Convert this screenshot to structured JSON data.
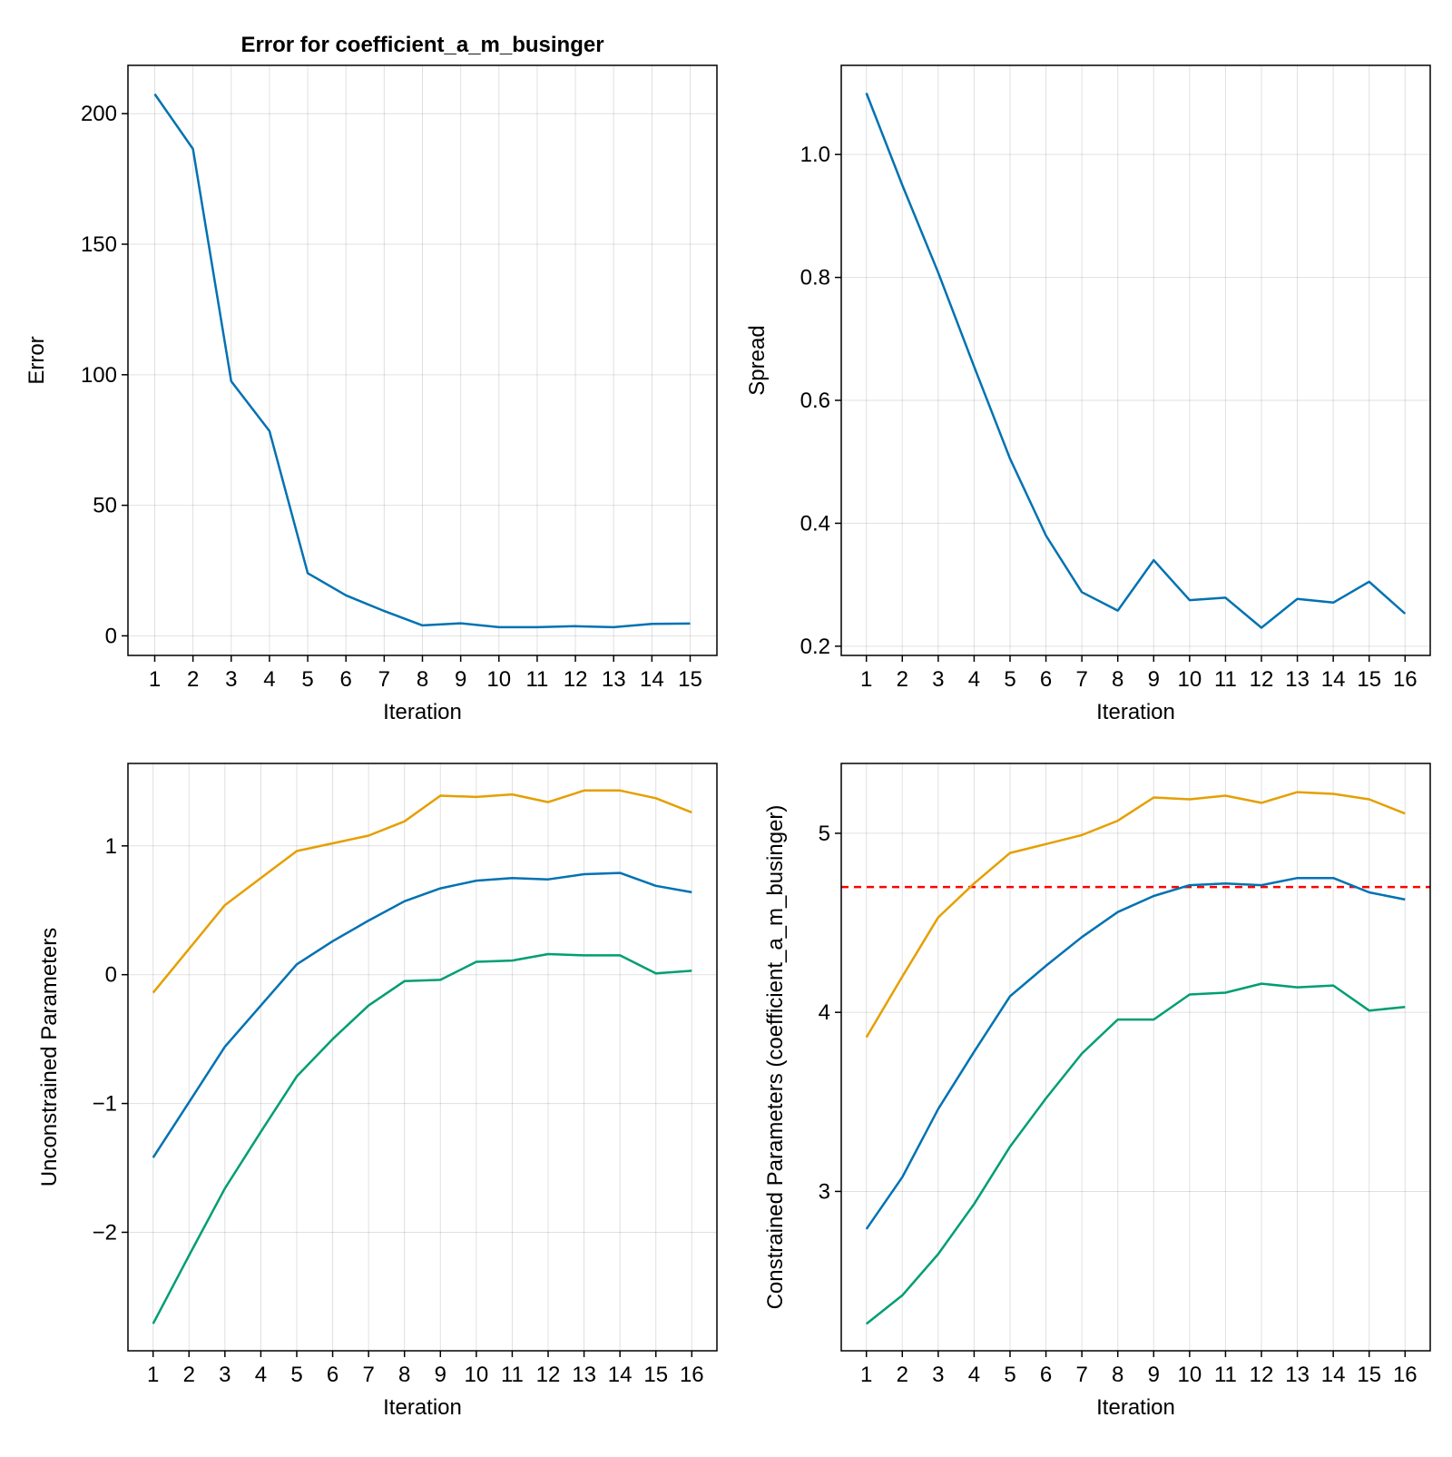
{
  "colors": {
    "blue": "#0072b2",
    "orange": "#e69f00",
    "green": "#009e73",
    "reference": "#ff0000"
  },
  "chart_data": [
    {
      "type": "line",
      "title": "Error for coefficient_a_m_businger",
      "xlabel": "Iteration",
      "ylabel": "Error",
      "x": [
        1,
        2,
        3,
        4,
        5,
        6,
        7,
        8,
        9,
        10,
        11,
        12,
        13,
        14,
        15
      ],
      "xlim": [
        0.3,
        15.7
      ],
      "ylim": [
        -7.5,
        218.5
      ],
      "yticks": [
        0,
        50,
        100,
        150,
        200
      ],
      "ytick_labels": [
        "0",
        "50",
        "100",
        "150",
        "200"
      ],
      "grid": true,
      "series": [
        {
          "color": "#0072b2",
          "values": [
            207.5,
            186.5,
            97.5,
            78.5,
            24,
            15.5,
            9.5,
            4,
            4.8,
            3.3,
            3.3,
            3.7,
            3.3,
            4.6,
            4.7
          ]
        }
      ]
    },
    {
      "type": "line",
      "title": "",
      "xlabel": "Iteration",
      "ylabel": "Spread",
      "x": [
        1,
        2,
        3,
        4,
        5,
        6,
        7,
        8,
        9,
        10,
        11,
        12,
        13,
        14,
        15,
        16
      ],
      "xlim": [
        0.3,
        16.7
      ],
      "ylim": [
        0.185,
        1.145
      ],
      "yticks": [
        0.2,
        0.4,
        0.6,
        0.8,
        1.0
      ],
      "ytick_labels": [
        "0.2",
        "0.4",
        "0.6",
        "0.8",
        "1.0"
      ],
      "grid": true,
      "series": [
        {
          "color": "#0072b2",
          "values": [
            1.1,
            0.95,
            0.808,
            0.655,
            0.505,
            0.38,
            0.288,
            0.258,
            0.34,
            0.275,
            0.279,
            0.23,
            0.277,
            0.271,
            0.305,
            0.253
          ]
        }
      ]
    },
    {
      "type": "line",
      "title": "",
      "xlabel": "Iteration",
      "ylabel": "Unconstrained Parameters",
      "x": [
        1,
        2,
        3,
        4,
        5,
        6,
        7,
        8,
        9,
        10,
        11,
        12,
        13,
        14,
        15,
        16
      ],
      "xlim": [
        0.3,
        16.7
      ],
      "ylim": [
        -2.92,
        1.64
      ],
      "yticks": [
        -2,
        -1,
        0,
        1
      ],
      "ytick_labels": [
        "−2",
        "−1",
        "0",
        "1"
      ],
      "grid": true,
      "series": [
        {
          "color": "#e69f00",
          "values": [
            -0.14,
            0.2,
            0.54,
            0.75,
            0.96,
            1.02,
            1.08,
            1.19,
            1.39,
            1.38,
            1.4,
            1.34,
            1.43,
            1.43,
            1.37,
            1.26
          ]
        },
        {
          "color": "#0072b2",
          "values": [
            -1.42,
            -0.99,
            -0.56,
            -0.24,
            0.08,
            0.26,
            0.42,
            0.57,
            0.67,
            0.73,
            0.75,
            0.74,
            0.78,
            0.79,
            0.69,
            0.64
          ]
        },
        {
          "color": "#009e73",
          "values": [
            -2.71,
            -2.18,
            -1.66,
            -1.22,
            -0.79,
            -0.5,
            -0.24,
            -0.05,
            -0.04,
            0.1,
            0.11,
            0.16,
            0.15,
            0.15,
            0.01,
            0.03
          ]
        }
      ]
    },
    {
      "type": "line",
      "title": "",
      "xlabel": "Iteration",
      "ylabel": "Constrained Parameters (coefficient_a_m_businger)",
      "x": [
        1,
        2,
        3,
        4,
        5,
        6,
        7,
        8,
        9,
        10,
        11,
        12,
        13,
        14,
        15,
        16
      ],
      "xlim": [
        0.3,
        16.7
      ],
      "ylim": [
        2.11,
        5.39
      ],
      "yticks": [
        3,
        4,
        5
      ],
      "ytick_labels": [
        "3",
        "4",
        "5"
      ],
      "grid": true,
      "reference_line": {
        "y": 4.7,
        "color": "#ff0000",
        "style": "dashed"
      },
      "series": [
        {
          "color": "#e69f00",
          "values": [
            3.86,
            4.2,
            4.53,
            4.72,
            4.89,
            4.94,
            4.99,
            5.07,
            5.2,
            5.19,
            5.21,
            5.17,
            5.23,
            5.22,
            5.19,
            5.11
          ]
        },
        {
          "color": "#0072b2",
          "values": [
            2.79,
            3.08,
            3.46,
            3.78,
            4.09,
            4.26,
            4.42,
            4.56,
            4.65,
            4.71,
            4.72,
            4.71,
            4.75,
            4.75,
            4.67,
            4.63
          ]
        },
        {
          "color": "#009e73",
          "values": [
            2.26,
            2.42,
            2.65,
            2.93,
            3.25,
            3.52,
            3.77,
            3.96,
            3.96,
            4.1,
            4.11,
            4.16,
            4.14,
            4.15,
            4.01,
            4.03
          ]
        }
      ]
    }
  ]
}
